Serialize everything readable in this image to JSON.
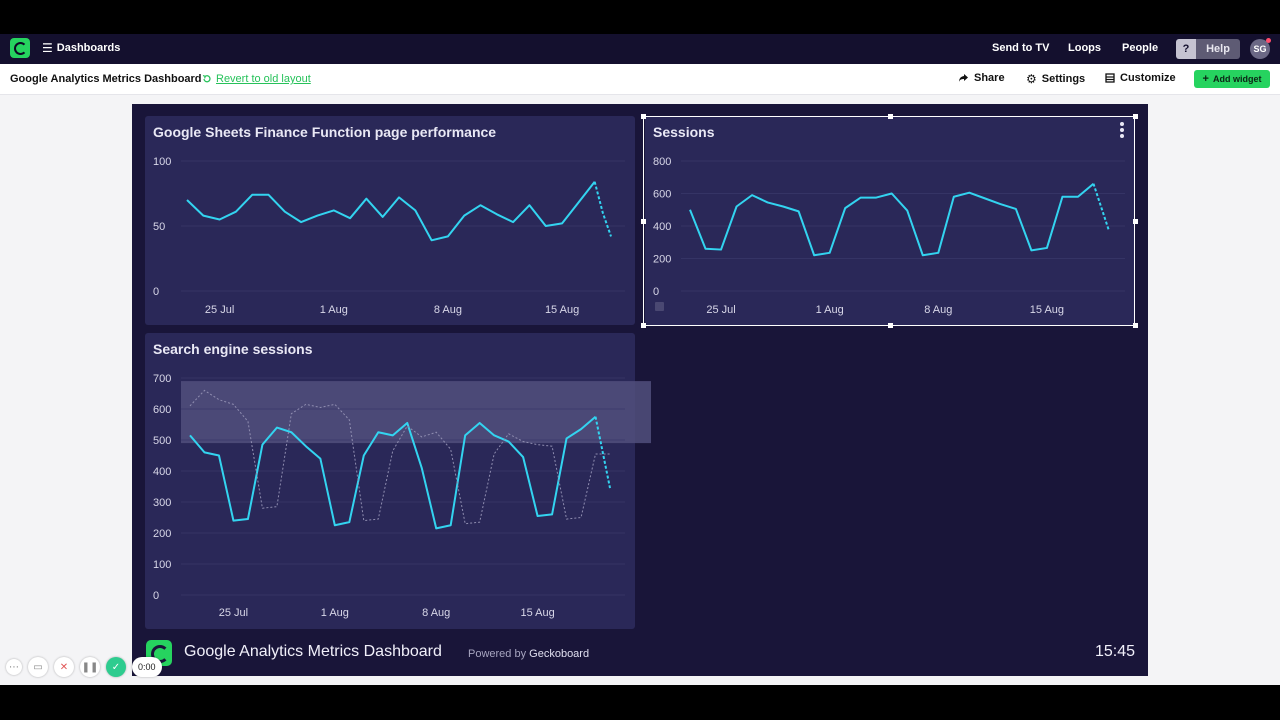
{
  "navbar": {
    "dashboards_label": "Dashboards",
    "send_to_tv": "Send to TV",
    "loops": "Loops",
    "people": "People",
    "help_icon": "?",
    "help": "Help",
    "avatar_initials": "SG"
  },
  "toolbar": {
    "title": "Google Analytics Metrics Dashboard",
    "revert": "Revert to old layout",
    "share": "Share",
    "settings": "Settings",
    "customize": "Customize",
    "add_widget": "Add widget"
  },
  "widgets": [
    {
      "title": "Google Sheets Finance Function page performance"
    },
    {
      "title": "Sessions"
    },
    {
      "title": "Search engine sessions"
    }
  ],
  "chart_data": [
    {
      "type": "line",
      "title": "Google Sheets Finance Function page performance",
      "ylim": [
        0,
        100
      ],
      "yticks": [
        "100",
        "50",
        "0"
      ],
      "xtick_labels": [
        "25 Jul",
        "1 Aug",
        "8 Aug",
        "15 Aug"
      ],
      "xtick_index": [
        2,
        9,
        16,
        23
      ],
      "series": [
        {
          "values": [
            70,
            58,
            55,
            61,
            74,
            74,
            61,
            53,
            58,
            62,
            56,
            71,
            57,
            72,
            62,
            39,
            42,
            58,
            66,
            59,
            53,
            66,
            50,
            52,
            68,
            84
          ],
          "projected": [
            84,
            60,
            42
          ]
        }
      ],
      "colors": {
        "line": "#33d4f0"
      }
    },
    {
      "type": "line",
      "title": "Sessions",
      "ylim": [
        0,
        800
      ],
      "yticks": [
        "800",
        "600",
        "400",
        "200",
        "0"
      ],
      "xtick_labels": [
        "25 Jul",
        "1 Aug",
        "8 Aug",
        "15 Aug"
      ],
      "xtick_index": [
        2,
        9,
        16,
        23
      ],
      "series": [
        {
          "values": [
            500,
            260,
            255,
            520,
            590,
            545,
            520,
            490,
            220,
            235,
            510,
            575,
            575,
            600,
            495,
            220,
            235,
            580,
            605,
            570,
            535,
            505,
            250,
            265,
            580,
            580,
            660
          ],
          "projected": [
            660,
            370
          ]
        }
      ],
      "colors": {
        "line": "#33d4f0"
      }
    },
    {
      "type": "line",
      "title": "Search engine sessions",
      "ylim": [
        0,
        700
      ],
      "yticks": [
        "700",
        "600",
        "500",
        "400",
        "300",
        "200",
        "100",
        "0"
      ],
      "xtick_labels": [
        "25 Jul",
        "1 Aug",
        "8 Aug",
        "15 Aug"
      ],
      "xtick_index": [
        3,
        10,
        17,
        24
      ],
      "band": [
        490,
        690
      ],
      "series": [
        {
          "values": [
            515,
            460,
            450,
            240,
            245,
            485,
            540,
            525,
            480,
            440,
            225,
            235,
            450,
            525,
            515,
            555,
            410,
            215,
            225,
            515,
            555,
            515,
            495,
            445,
            255,
            260,
            505,
            535,
            575
          ],
          "projected": [
            575,
            345
          ]
        },
        {
          "values": [
            610,
            660,
            630,
            615,
            560,
            280,
            285,
            585,
            615,
            605,
            615,
            565,
            240,
            245,
            465,
            545,
            510,
            525,
            470,
            230,
            235,
            455,
            520,
            495,
            485,
            480,
            245,
            250,
            455,
            455
          ],
          "style": "dashed"
        }
      ],
      "colors": {
        "line": "#33d4f0",
        "previous": "#8f8db0",
        "band": "#514f7c"
      }
    }
  ],
  "footer": {
    "title": "Google Analytics Metrics Dashboard",
    "powered_prefix": "Powered by",
    "powered_brand": "Geckoboard",
    "time": "15:45"
  },
  "recorder": {
    "time": "0:00"
  }
}
